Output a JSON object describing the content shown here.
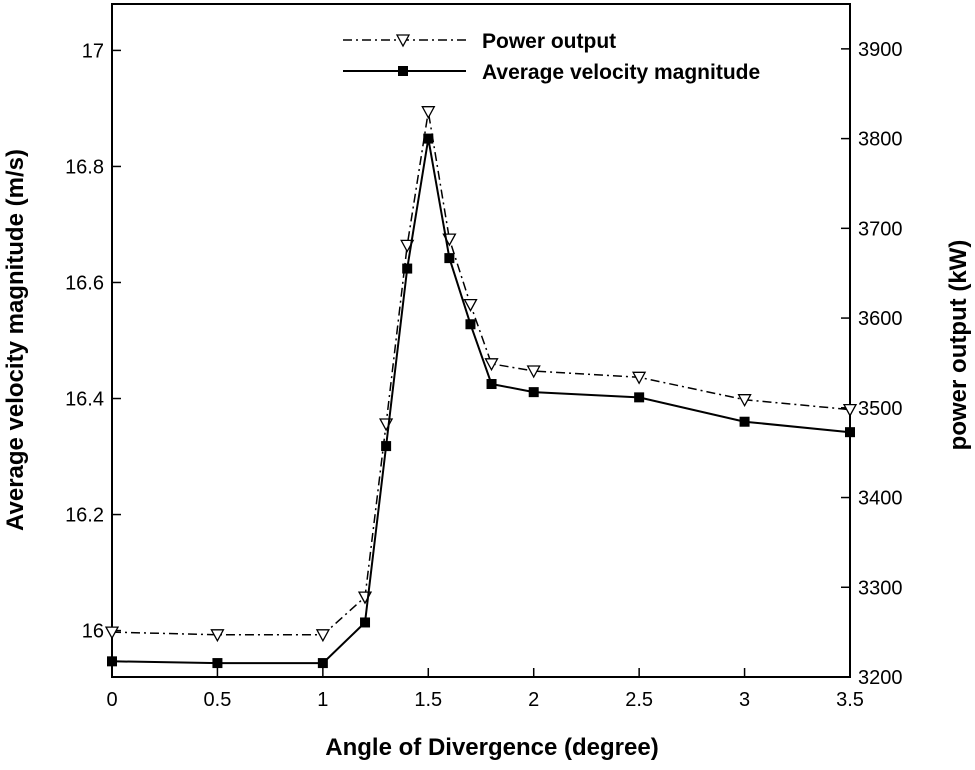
{
  "chart_data": {
    "type": "line",
    "title": "",
    "xlabel": "Angle of Divergence (degree)",
    "ylabel_left": "Average velocity magnitude (m/s)",
    "ylabel_right": "power output (kW)",
    "xlim": [
      0,
      3.5
    ],
    "ylim_left": [
      15.92,
      17.08
    ],
    "ylim_right": [
      3200,
      3950
    ],
    "x_ticks": [
      "0",
      "0.5",
      "1",
      "1.5",
      "2",
      "2.5",
      "3",
      "3.5"
    ],
    "x_tick_values": [
      0,
      0.5,
      1,
      1.5,
      2,
      2.5,
      3,
      3.5
    ],
    "y_left_ticks": [
      "16",
      "16.2",
      "16.4",
      "16.6",
      "16.8",
      "17"
    ],
    "y_left_tick_values": [
      16,
      16.2,
      16.4,
      16.6,
      16.8,
      17
    ],
    "y_right_ticks": [
      "3200",
      "3300",
      "3400",
      "3500",
      "3600",
      "3700",
      "3800",
      "3900"
    ],
    "y_right_tick_values": [
      3200,
      3300,
      3400,
      3500,
      3600,
      3700,
      3800,
      3900
    ],
    "grid": false,
    "legend_position": "top-center",
    "x": [
      0,
      0.5,
      1,
      1.2,
      1.3,
      1.4,
      1.5,
      1.6,
      1.7,
      1.8,
      2,
      2.5,
      3,
      3.5
    ],
    "series": [
      {
        "name": "Power output",
        "axis": "right",
        "style": "dash-dot",
        "marker": "triangle-down-open",
        "values": [
          3250,
          3247,
          3247,
          3289,
          3482,
          3681,
          3830,
          3688,
          3615,
          3549,
          3541,
          3534,
          3509,
          3498
        ]
      },
      {
        "name": "Average velocity magnitude",
        "axis": "left",
        "style": "solid",
        "marker": "square-filled",
        "values": [
          15.947,
          15.944,
          15.944,
          16.014,
          16.318,
          16.624,
          16.848,
          16.642,
          16.528,
          16.425,
          16.411,
          16.402,
          16.36,
          16.342
        ]
      }
    ]
  }
}
